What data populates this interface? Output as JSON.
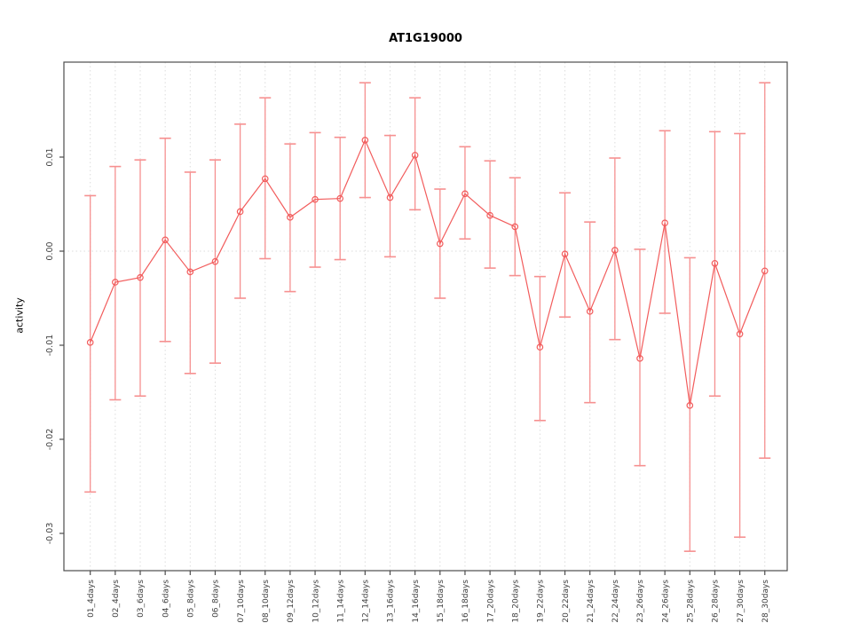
{
  "chart_data": {
    "type": "line",
    "title": "AT1G19000",
    "ylabel": "activity",
    "xlabel": "",
    "legend": "none",
    "grid": "vertical dotted gridlines at each category plus dotted line at y=0",
    "ylim": [
      -0.0335,
      0.0201
    ],
    "yticks": [
      0.01,
      0.0,
      -0.01,
      -0.02,
      -0.03
    ],
    "ytick_labels": [
      "0.01",
      "0.00",
      "-0.01",
      "-0.02",
      "-0.03"
    ],
    "categories": [
      "01_4days",
      "02_4days",
      "03_6days",
      "04_6days",
      "05_8days",
      "06_8days",
      "07_10days",
      "08_10days",
      "09_12days",
      "10_12days",
      "11_14days",
      "12_14days",
      "13_16days",
      "14_16days",
      "15_18days",
      "16_18days",
      "17_20days",
      "18_20days",
      "19_22days",
      "20_22days",
      "21_24days",
      "22_24days",
      "23_26days",
      "24_26days",
      "25_28days",
      "26_28days",
      "27_30days",
      "28_30days"
    ],
    "series": [
      {
        "name": "activity",
        "marker": "open-circle",
        "values": [
          -0.0097,
          -0.0033,
          -0.0028,
          0.0012,
          -0.0022,
          -0.0011,
          0.0042,
          0.0077,
          0.0036,
          0.0055,
          0.0056,
          0.0118,
          0.0057,
          0.0102,
          0.0008,
          0.0061,
          0.0038,
          0.0026,
          -0.0102,
          -0.0003,
          -0.0064,
          0.0001,
          -0.0114,
          0.003,
          -0.0164,
          -0.0013,
          -0.0088,
          -0.0021
        ],
        "error_low": [
          -0.0256,
          -0.0158,
          -0.0154,
          -0.0096,
          -0.013,
          -0.0119,
          -0.005,
          -0.0008,
          -0.0043,
          -0.0017,
          -0.0009,
          0.0057,
          -0.0006,
          0.0044,
          -0.005,
          0.0013,
          -0.0018,
          -0.0026,
          -0.018,
          -0.007,
          -0.0161,
          -0.0094,
          -0.0228,
          -0.0066,
          -0.0319,
          -0.0154,
          -0.0304,
          -0.022
        ],
        "error_high": [
          0.0059,
          0.009,
          0.0097,
          0.012,
          0.0084,
          0.0097,
          0.0135,
          0.0163,
          0.0114,
          0.0126,
          0.0121,
          0.0179,
          0.0123,
          0.0163,
          0.0066,
          0.0111,
          0.0096,
          0.0078,
          -0.0027,
          0.0062,
          0.0031,
          0.0099,
          0.0002,
          0.0128,
          -0.0007,
          0.0127,
          0.0125,
          0.0179
        ]
      }
    ],
    "colors": {
      "line": "#f25c5c",
      "point": "#f25c5c",
      "error_bar": "#f69090",
      "grid": "#dcdcdc",
      "axis": "#4d4d4d",
      "tick_text": "#404040",
      "background": "#ffffff"
    }
  }
}
